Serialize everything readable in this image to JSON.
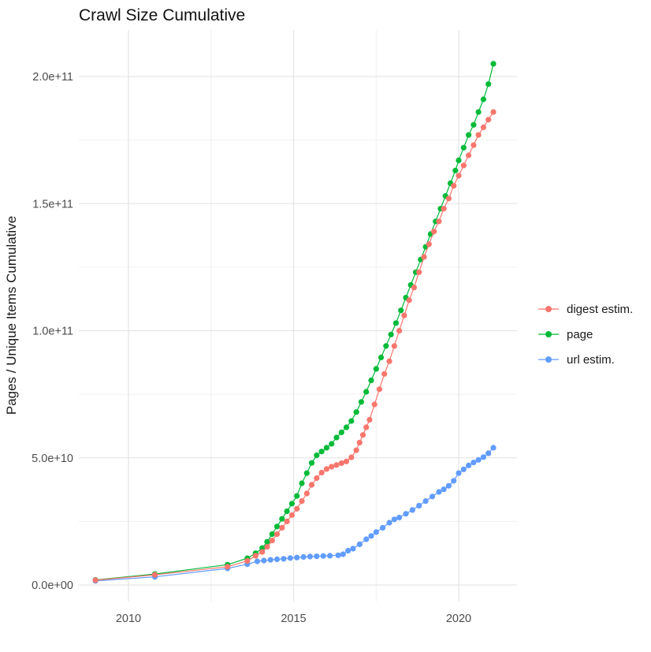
{
  "title": "Crawl Size Cumulative",
  "y_axis": {
    "title": "Pages / Unique Items Cumulative",
    "ticks": [
      {
        "label": "0.0e+00",
        "value_billions": 0
      },
      {
        "label": "5.0e+10",
        "value_billions": 50
      },
      {
        "label": "1.0e+11",
        "value_billions": 100
      },
      {
        "label": "1.5e+11",
        "value_billions": 150
      },
      {
        "label": "2.0e+11",
        "value_billions": 200
      }
    ]
  },
  "x_axis": {
    "ticks": [
      {
        "label": "2010",
        "value_year": 2010
      },
      {
        "label": "2015",
        "value_year": 2015
      },
      {
        "label": "2020",
        "value_year": 2020
      }
    ]
  },
  "legend": {
    "items": [
      {
        "label": "digest estim.",
        "color": "#F8766D"
      },
      {
        "label": "page",
        "color": "#00BA38"
      },
      {
        "label": "url estim.",
        "color": "#619CFF"
      }
    ]
  },
  "colors": {
    "digest_estim": "#F8766D",
    "page": "#00BA38",
    "url_estim": "#619CFF",
    "grid_major": "#E2E2E2",
    "grid_minor": "#F0F0F0"
  },
  "chart_data": {
    "type": "line",
    "title": "Crawl Size Cumulative",
    "xlabel": "",
    "ylabel": "Pages / Unique Items Cumulative",
    "x_unit": "year (decimal)",
    "y_unit": "items; stored values are billions (multiply by 1e9)",
    "xlim": [
      2008.5,
      2021.8
    ],
    "ylim_billions": [
      0,
      218
    ],
    "grid": "major and minor, light grey on white",
    "legend_position": "right-center",
    "marker": "filled circle with thin connecting line",
    "series": [
      {
        "name": "url estim.",
        "color": "#619CFF",
        "points_year_billions": [
          [
            2009.0,
            1.6
          ],
          [
            2010.8,
            3.2
          ],
          [
            2013.0,
            6.5
          ],
          [
            2013.6,
            8.2
          ],
          [
            2013.9,
            9.3
          ],
          [
            2014.1,
            9.6
          ],
          [
            2014.3,
            9.9
          ],
          [
            2014.5,
            10.1
          ],
          [
            2014.7,
            10.3
          ],
          [
            2014.9,
            10.6
          ],
          [
            2015.1,
            10.8
          ],
          [
            2015.3,
            11.0
          ],
          [
            2015.5,
            11.2
          ],
          [
            2015.7,
            11.3
          ],
          [
            2015.9,
            11.4
          ],
          [
            2016.1,
            11.5
          ],
          [
            2016.35,
            11.7
          ],
          [
            2016.5,
            12.1
          ],
          [
            2016.65,
            13.5
          ],
          [
            2016.8,
            14.3
          ],
          [
            2017.0,
            16
          ],
          [
            2017.2,
            18
          ],
          [
            2017.35,
            19.3
          ],
          [
            2017.5,
            20.8
          ],
          [
            2017.7,
            22.5
          ],
          [
            2017.9,
            24.5
          ],
          [
            2018.05,
            25.8
          ],
          [
            2018.2,
            26.5
          ],
          [
            2018.4,
            28
          ],
          [
            2018.6,
            29.5
          ],
          [
            2018.8,
            31.2
          ],
          [
            2019.0,
            33
          ],
          [
            2019.2,
            34.8
          ],
          [
            2019.4,
            36.6
          ],
          [
            2019.55,
            37.6
          ],
          [
            2019.7,
            39
          ],
          [
            2019.85,
            41
          ],
          [
            2020.0,
            44
          ],
          [
            2020.15,
            45.5
          ],
          [
            2020.3,
            47
          ],
          [
            2020.45,
            48.2
          ],
          [
            2020.6,
            49.2
          ],
          [
            2020.75,
            50.3
          ],
          [
            2020.9,
            51.8
          ],
          [
            2021.05,
            54
          ]
        ]
      },
      {
        "name": "page",
        "color": "#00BA38",
        "points_year_billions": [
          [
            2009.0,
            2.0
          ],
          [
            2010.8,
            4.3
          ],
          [
            2013.0,
            8.0
          ],
          [
            2013.6,
            10.5
          ],
          [
            2013.85,
            12.5
          ],
          [
            2014.05,
            14.5
          ],
          [
            2014.2,
            17
          ],
          [
            2014.35,
            20
          ],
          [
            2014.5,
            23
          ],
          [
            2014.65,
            26
          ],
          [
            2014.8,
            29
          ],
          [
            2014.95,
            32
          ],
          [
            2015.1,
            35
          ],
          [
            2015.25,
            40
          ],
          [
            2015.4,
            44
          ],
          [
            2015.55,
            48
          ],
          [
            2015.7,
            51
          ],
          [
            2015.85,
            52.5
          ],
          [
            2016.0,
            54
          ],
          [
            2016.15,
            55.5
          ],
          [
            2016.3,
            58
          ],
          [
            2016.45,
            60
          ],
          [
            2016.6,
            62
          ],
          [
            2016.75,
            64.5
          ],
          [
            2016.9,
            68
          ],
          [
            2017.05,
            72
          ],
          [
            2017.2,
            76
          ],
          [
            2017.35,
            80.5
          ],
          [
            2017.5,
            85
          ],
          [
            2017.65,
            89.5
          ],
          [
            2017.8,
            94
          ],
          [
            2017.95,
            98.5
          ],
          [
            2018.1,
            103
          ],
          [
            2018.25,
            108
          ],
          [
            2018.4,
            113
          ],
          [
            2018.55,
            118
          ],
          [
            2018.7,
            123
          ],
          [
            2018.85,
            128
          ],
          [
            2019.0,
            133
          ],
          [
            2019.15,
            138
          ],
          [
            2019.3,
            143
          ],
          [
            2019.45,
            148
          ],
          [
            2019.6,
            153
          ],
          [
            2019.75,
            158
          ],
          [
            2019.9,
            163
          ],
          [
            2020.0,
            167
          ],
          [
            2020.15,
            172
          ],
          [
            2020.3,
            177
          ],
          [
            2020.45,
            181
          ],
          [
            2020.6,
            186
          ],
          [
            2020.75,
            191
          ],
          [
            2020.9,
            197
          ],
          [
            2021.05,
            205
          ]
        ]
      },
      {
        "name": "digest estim.",
        "color": "#F8766D",
        "points_year_billions": [
          [
            2009.0,
            1.9
          ],
          [
            2010.8,
            4.0
          ],
          [
            2013.0,
            7.2
          ],
          [
            2013.6,
            9.5
          ],
          [
            2013.85,
            11.5
          ],
          [
            2014.05,
            13
          ],
          [
            2014.2,
            15
          ],
          [
            2014.35,
            17.5
          ],
          [
            2014.5,
            20
          ],
          [
            2014.65,
            22.5
          ],
          [
            2014.8,
            25
          ],
          [
            2014.95,
            27.5
          ],
          [
            2015.1,
            30
          ],
          [
            2015.25,
            33
          ],
          [
            2015.4,
            36
          ],
          [
            2015.55,
            39.4
          ],
          [
            2015.7,
            42
          ],
          [
            2015.85,
            44.2
          ],
          [
            2016.0,
            45.6
          ],
          [
            2016.15,
            46.5
          ],
          [
            2016.3,
            47.2
          ],
          [
            2016.45,
            47.9
          ],
          [
            2016.6,
            48.6
          ],
          [
            2016.75,
            50.2
          ],
          [
            2016.9,
            53
          ],
          [
            2017.0,
            56
          ],
          [
            2017.1,
            59
          ],
          [
            2017.2,
            62
          ],
          [
            2017.3,
            65
          ],
          [
            2017.45,
            71
          ],
          [
            2017.6,
            77
          ],
          [
            2017.75,
            83
          ],
          [
            2017.9,
            88
          ],
          [
            2018.05,
            94
          ],
          [
            2018.2,
            100
          ],
          [
            2018.35,
            106
          ],
          [
            2018.5,
            112
          ],
          [
            2018.65,
            117
          ],
          [
            2018.8,
            123
          ],
          [
            2018.95,
            129
          ],
          [
            2019.1,
            134
          ],
          [
            2019.25,
            139
          ],
          [
            2019.4,
            143
          ],
          [
            2019.55,
            148
          ],
          [
            2019.7,
            152
          ],
          [
            2019.85,
            157
          ],
          [
            2020.0,
            161
          ],
          [
            2020.15,
            165
          ],
          [
            2020.3,
            169
          ],
          [
            2020.45,
            173
          ],
          [
            2020.6,
            177
          ],
          [
            2020.75,
            180
          ],
          [
            2020.9,
            183
          ],
          [
            2021.05,
            186
          ]
        ]
      }
    ]
  }
}
